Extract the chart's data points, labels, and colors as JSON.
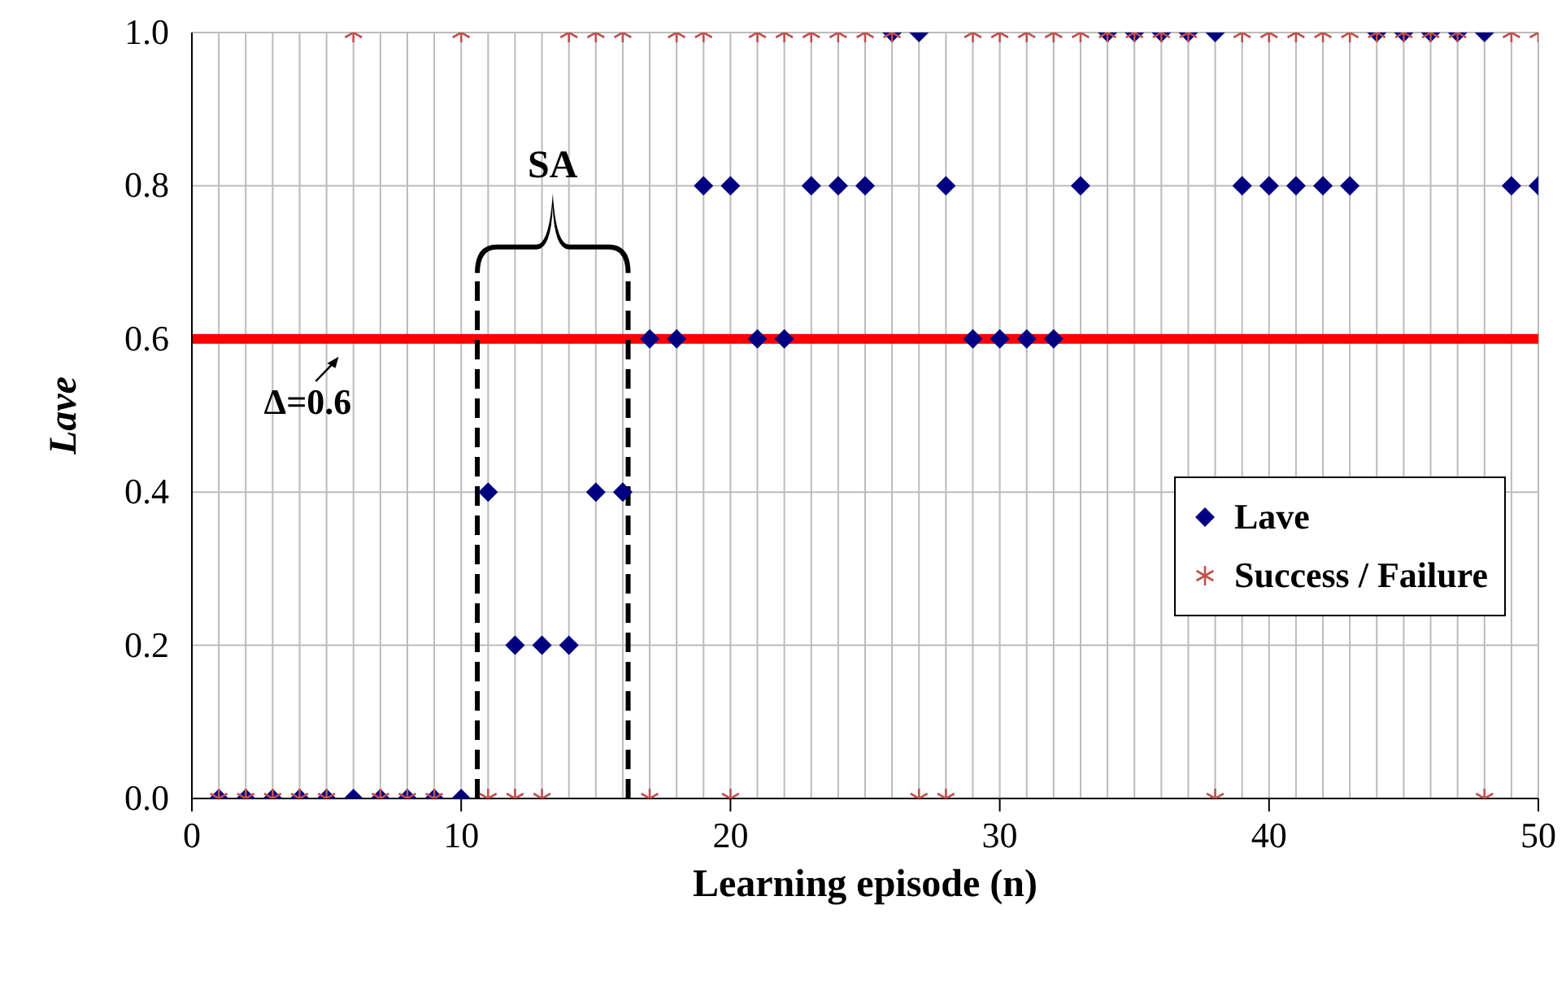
{
  "chart_data": {
    "type": "scatter",
    "xlabel": "Learning episode (n)",
    "ylabel": "Lave",
    "x": [
      1,
      2,
      3,
      4,
      5,
      6,
      7,
      8,
      9,
      10,
      11,
      12,
      13,
      14,
      15,
      16,
      17,
      18,
      19,
      20,
      21,
      22,
      23,
      24,
      25,
      26,
      27,
      28,
      29,
      30,
      31,
      32,
      33,
      34,
      35,
      36,
      37,
      38,
      39,
      40,
      41,
      42,
      43,
      44,
      45,
      46,
      47,
      48,
      49,
      50
    ],
    "series": [
      {
        "name": "Lave",
        "color": "#000080",
        "marker": "diamond",
        "values": [
          0,
          0,
          0,
          0,
          0,
          0,
          0,
          0,
          0,
          0,
          0.4,
          0.2,
          0.2,
          0.2,
          0.4,
          0.4,
          0.6,
          0.6,
          0.8,
          0.8,
          0.6,
          0.6,
          0.8,
          0.8,
          0.8,
          1,
          1,
          0.8,
          0.6,
          0.6,
          0.6,
          0.6,
          0.8,
          1,
          1,
          1,
          1,
          1,
          0.8,
          0.8,
          0.8,
          0.8,
          0.8,
          1,
          1,
          1,
          1,
          1,
          0.8,
          0.8
        ]
      },
      {
        "name": "Success / Failure",
        "color": "#c0504d",
        "marker": "cross",
        "values": [
          0,
          0,
          0,
          0,
          0,
          1,
          0,
          0,
          0,
          1,
          0,
          0,
          0,
          1,
          1,
          1,
          0,
          1,
          1,
          0,
          1,
          1,
          1,
          1,
          1,
          1,
          0,
          0,
          1,
          1,
          1,
          1,
          1,
          1,
          1,
          1,
          1,
          0,
          1,
          1,
          1,
          1,
          1,
          1,
          1,
          1,
          1,
          0,
          1,
          1
        ]
      }
    ],
    "xlim": [
      0,
      50
    ],
    "xticks": [
      0,
      {
        "value": 1,
        "label": null
      },
      {
        "value": 2,
        "label": null
      },
      {
        "value": 3,
        "label": null
      },
      {
        "value": 4,
        "label": null
      },
      {
        "value": 5,
        "label": null
      },
      {
        "value": 6,
        "label": null
      },
      {
        "value": 7,
        "label": null
      },
      {
        "value": 8,
        "label": null
      },
      {
        "value": 9,
        "label": null
      },
      10,
      {
        "value": 11,
        "label": null
      },
      {
        "value": 12,
        "label": null
      },
      {
        "value": 13,
        "label": null
      },
      {
        "value": 14,
        "label": null
      },
      {
        "value": 15,
        "label": null
      },
      {
        "value": 16,
        "label": null
      },
      {
        "value": 17,
        "label": null
      },
      {
        "value": 18,
        "label": null
      },
      {
        "value": 19,
        "label": null
      },
      20,
      {
        "value": 21,
        "label": null
      },
      {
        "value": 22,
        "label": null
      },
      {
        "value": 23,
        "label": null
      },
      {
        "value": 24,
        "label": null
      },
      {
        "value": 25,
        "label": null
      },
      {
        "value": 26,
        "label": null
      },
      {
        "value": 27,
        "label": null
      },
      {
        "value": 28,
        "label": null
      },
      {
        "value": 29,
        "label": null
      },
      30,
      {
        "value": 31,
        "label": null
      },
      {
        "value": 32,
        "label": null
      },
      {
        "value": 33,
        "label": null
      },
      {
        "value": 34,
        "label": null
      },
      {
        "value": 35,
        "label": null
      },
      {
        "value": 36,
        "label": null
      },
      {
        "value": 37,
        "label": null
      },
      {
        "value": 38,
        "label": null
      },
      {
        "value": 39,
        "label": null
      },
      40,
      {
        "value": 41,
        "label": null
      },
      {
        "value": 42,
        "label": null
      },
      {
        "value": 43,
        "label": null
      },
      {
        "value": 44,
        "label": null
      },
      {
        "value": 45,
        "label": null
      },
      {
        "value": 46,
        "label": null
      },
      {
        "value": 47,
        "label": null
      },
      {
        "value": 48,
        "label": null
      },
      {
        "value": 49,
        "label": null
      },
      50
    ],
    "ylim": [
      0,
      1
    ],
    "yticks": [
      {
        "value": 0,
        "label": "0.0"
      },
      {
        "value": 0.2,
        "label": "0.2"
      },
      {
        "value": 0.4,
        "label": "0.4"
      },
      {
        "value": 0.6,
        "label": "0.6"
      },
      {
        "value": 0.8,
        "label": "0.8"
      },
      {
        "value": 1,
        "label": "1.0"
      }
    ],
    "ref_lines": [
      {
        "axis": "y",
        "value": 0.6,
        "label": "Δ=0.6",
        "color": "#ff0000"
      },
      {
        "axis": "x",
        "value": 10.6,
        "color": "#000000",
        "line_style": "dashed"
      },
      {
        "axis": "x",
        "value": 16.2,
        "color": "#000000",
        "line_style": "dashed"
      }
    ],
    "annotations": [
      "SA"
    ],
    "grid": true,
    "legend": "right"
  }
}
